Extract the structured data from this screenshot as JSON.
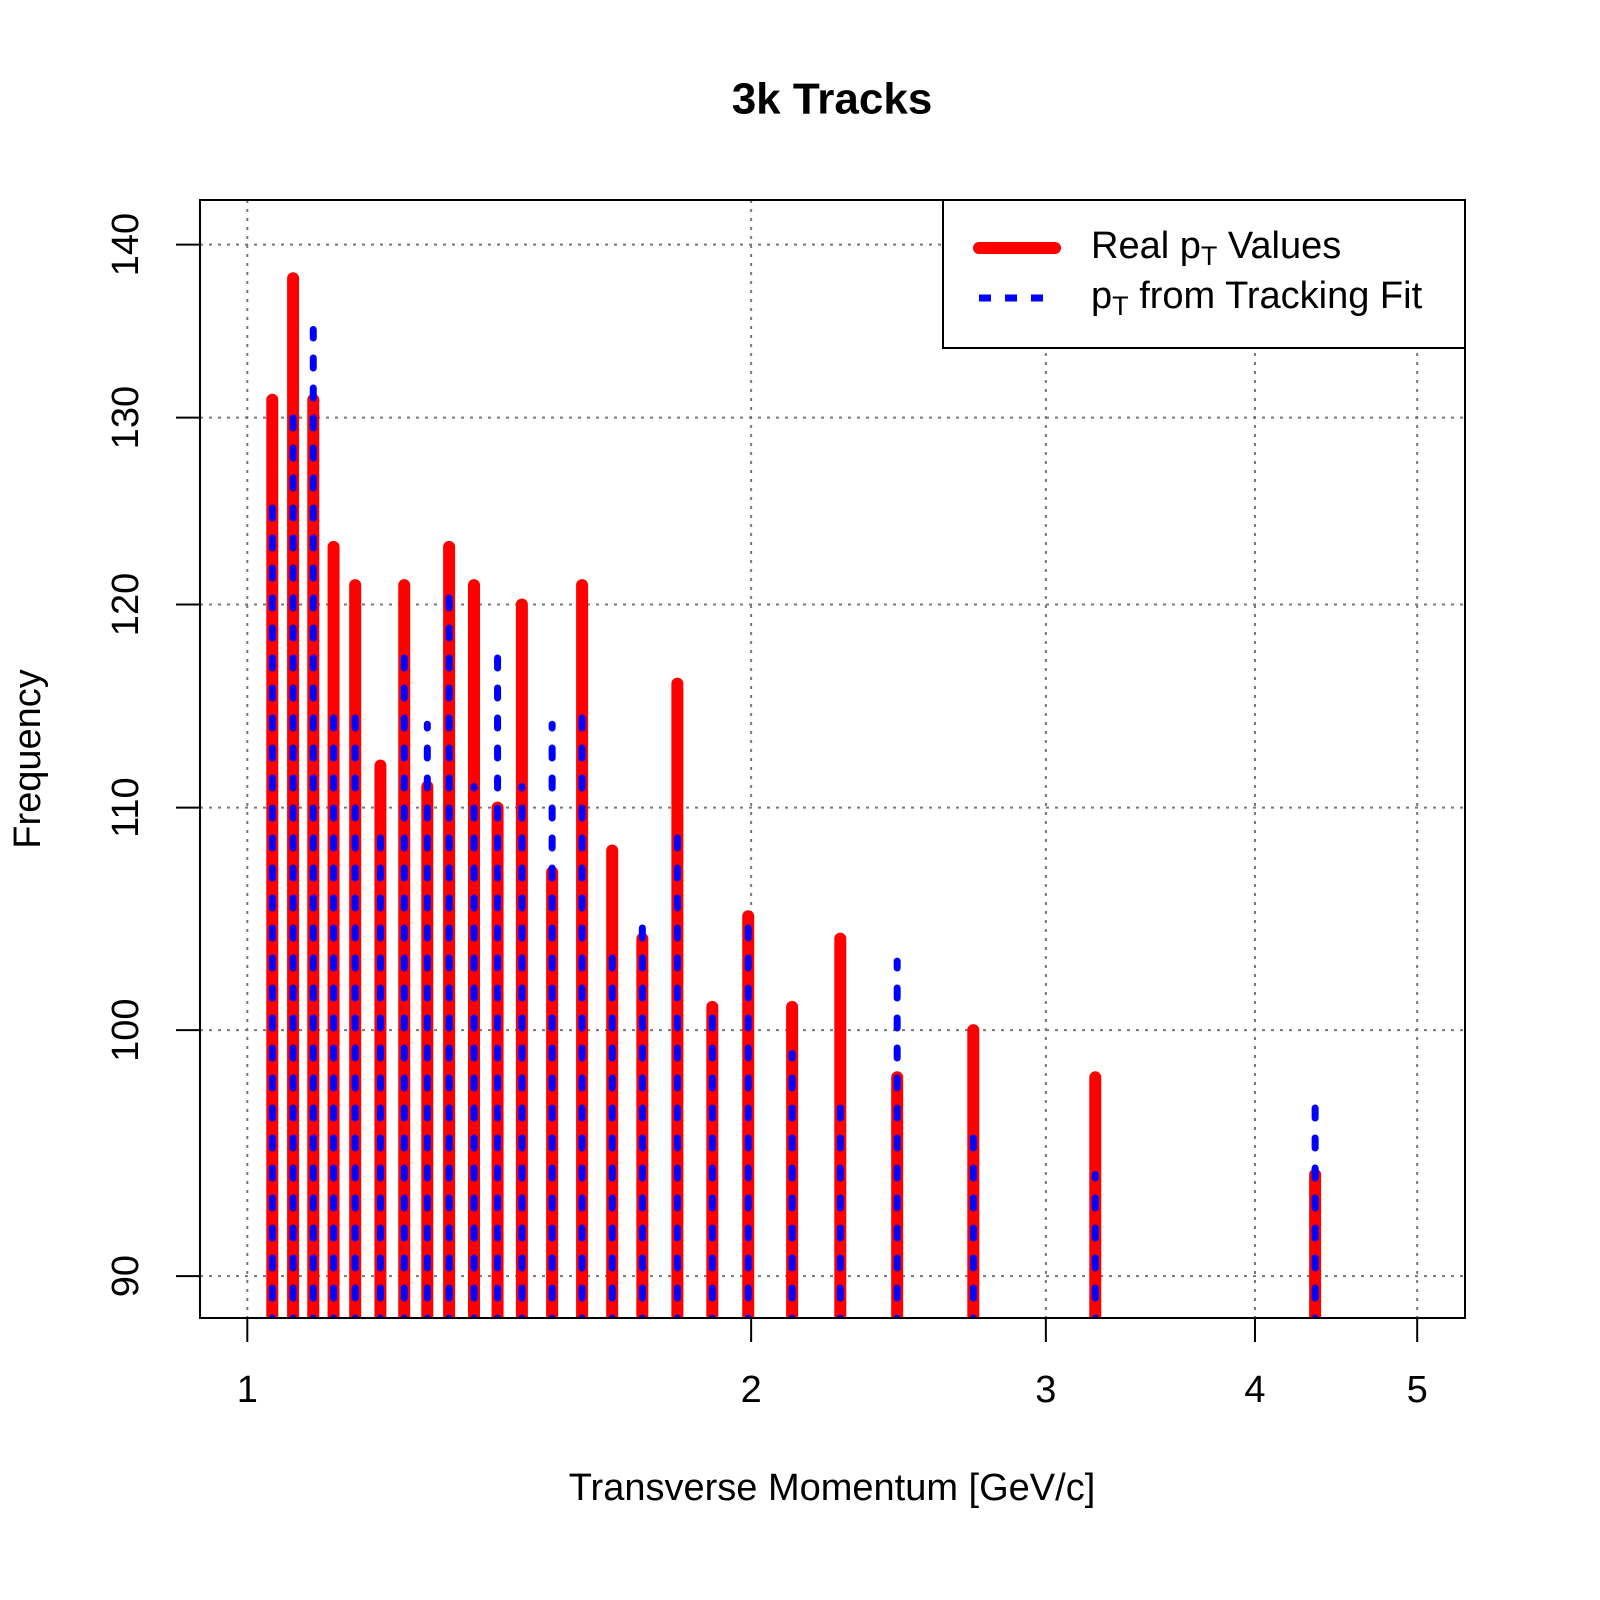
{
  "chart_data": {
    "type": "line",
    "title": "3k Tracks",
    "x_label": "Transverse Momentum [GeV/c]",
    "y_label": "Frequency",
    "x": [
      1.035,
      1.065,
      1.095,
      1.126,
      1.16,
      1.201,
      1.241,
      1.281,
      1.32,
      1.366,
      1.411,
      1.459,
      1.521,
      1.585,
      1.652,
      1.722,
      1.807,
      1.896,
      1.992,
      2.116,
      2.261,
      2.445,
      2.715,
      3.211,
      4.345
    ],
    "series": [
      {
        "name": "Real pT Values",
        "color": "#ff0000",
        "line_style": "solid",
        "values": [
          131,
          138,
          131,
          123,
          121,
          112,
          121,
          111,
          123,
          121,
          110,
          120,
          107,
          121,
          108,
          104,
          116,
          101,
          105,
          101,
          104,
          98,
          100,
          98,
          94
        ]
      },
      {
        "name": "pT from Tracking Fit",
        "color": "#0000ff",
        "line_style": "dashed",
        "values": [
          126,
          131,
          135,
          115,
          115,
          109,
          118,
          114,
          121,
          111,
          118,
          111,
          114,
          115,
          104,
          105,
          109,
          101,
          105,
          99,
          97,
          103,
          96,
          94,
          97
        ]
      }
    ],
    "xlim": [
      0.937,
      5.34
    ],
    "ylim": [
      88.4,
      142.7
    ],
    "xticks": [
      1,
      2,
      3,
      4,
      5
    ],
    "yticks": [
      90,
      100,
      110,
      120,
      130,
      140
    ],
    "log_x": true,
    "log_y": true,
    "grid": true,
    "legend_position": "top-right"
  }
}
